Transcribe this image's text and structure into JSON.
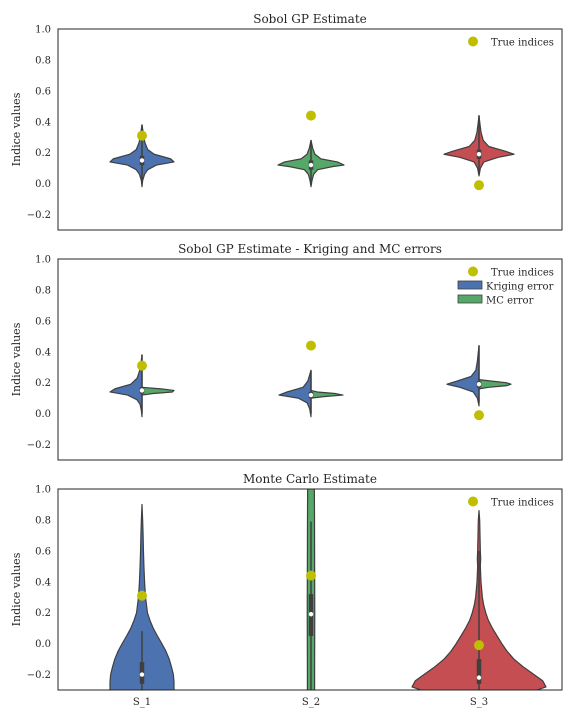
{
  "chart_data": [
    {
      "type": "violin",
      "title": "Sobol GP Estimate",
      "ylabel": "Indice values",
      "xlabel": "",
      "ylim": [
        -0.3,
        1.0
      ],
      "yticks": [
        "−0.2",
        "0.0",
        "0.2",
        "0.4",
        "0.6",
        "0.8",
        "1.0"
      ],
      "categories": [
        "S_1",
        "S_2",
        "S_3"
      ],
      "show_xticks": false,
      "legend": {
        "position": "top-right",
        "entries": [
          {
            "label": "True indices",
            "kind": "marker",
            "color": "#bfbf00"
          }
        ]
      },
      "violins": [
        {
          "category": "S_1",
          "color": "#4c72b0",
          "median": 0.15,
          "q1": 0.12,
          "q3": 0.18,
          "whisker_low": 0.0,
          "whisker_high": 0.38,
          "profile": [
            [
              -0.02,
              0.0
            ],
            [
              0.02,
              0.02
            ],
            [
              0.06,
              0.08
            ],
            [
              0.09,
              0.18
            ],
            [
              0.12,
              0.45
            ],
            [
              0.14,
              1.0
            ],
            [
              0.16,
              0.9
            ],
            [
              0.19,
              0.38
            ],
            [
              0.22,
              0.18
            ],
            [
              0.26,
              0.1
            ],
            [
              0.3,
              0.05
            ],
            [
              0.34,
              0.03
            ],
            [
              0.38,
              0.0
            ]
          ]
        },
        {
          "category": "S_2",
          "color": "#55a868",
          "median": 0.12,
          "q1": 0.09,
          "q3": 0.15,
          "whisker_low": 0.0,
          "whisker_high": 0.28,
          "profile": [
            [
              -0.02,
              0.0
            ],
            [
              0.02,
              0.03
            ],
            [
              0.06,
              0.08
            ],
            [
              0.09,
              0.2
            ],
            [
              0.11,
              0.65
            ],
            [
              0.12,
              1.0
            ],
            [
              0.14,
              0.8
            ],
            [
              0.16,
              0.3
            ],
            [
              0.19,
              0.12
            ],
            [
              0.23,
              0.05
            ],
            [
              0.28,
              0.0
            ]
          ]
        },
        {
          "category": "S_3",
          "color": "#c44e52",
          "median": 0.19,
          "q1": 0.16,
          "q3": 0.22,
          "whisker_low": 0.06,
          "whisker_high": 0.44,
          "profile": [
            [
              0.05,
              0.0
            ],
            [
              0.1,
              0.04
            ],
            [
              0.14,
              0.14
            ],
            [
              0.17,
              0.55
            ],
            [
              0.19,
              1.0
            ],
            [
              0.21,
              0.75
            ],
            [
              0.24,
              0.28
            ],
            [
              0.28,
              0.12
            ],
            [
              0.33,
              0.06
            ],
            [
              0.38,
              0.03
            ],
            [
              0.44,
              0.0
            ]
          ]
        }
      ],
      "true_indices": [
        0.31,
        0.44,
        -0.01
      ]
    },
    {
      "type": "split-violin",
      "title": "Sobol GP Estimate - Kriging and MC errors",
      "ylabel": "Indice values",
      "xlabel": "",
      "ylim": [
        -0.3,
        1.0
      ],
      "yticks": [
        "−0.2",
        "0.0",
        "0.2",
        "0.4",
        "0.6",
        "0.8",
        "1.0"
      ],
      "categories": [
        "S_1",
        "S_2",
        "S_3"
      ],
      "show_xticks": false,
      "legend": {
        "position": "top-right",
        "entries": [
          {
            "label": "True indices",
            "kind": "marker",
            "color": "#bfbf00"
          },
          {
            "label": "Kriging error",
            "kind": "patch",
            "color": "#4c72b0"
          },
          {
            "label": "MC error",
            "kind": "patch",
            "color": "#55a868"
          }
        ]
      },
      "violins": [
        {
          "category": "S_1",
          "median": 0.15,
          "q1": 0.13,
          "q3": 0.17,
          "whisker_low": 0.0,
          "whisker_high": 0.38,
          "left": {
            "series": "Kriging error",
            "color": "#4c72b0",
            "profile": [
              [
                -0.02,
                0.0
              ],
              [
                0.02,
                0.02
              ],
              [
                0.06,
                0.06
              ],
              [
                0.09,
                0.16
              ],
              [
                0.12,
                0.45
              ],
              [
                0.14,
                1.0
              ],
              [
                0.16,
                0.85
              ],
              [
                0.19,
                0.35
              ],
              [
                0.23,
                0.15
              ],
              [
                0.28,
                0.07
              ],
              [
                0.33,
                0.03
              ],
              [
                0.38,
                0.0
              ]
            ]
          },
          "right": {
            "series": "MC error",
            "color": "#55a868",
            "profile": [
              [
                0.12,
                0.0
              ],
              [
                0.13,
                0.35
              ],
              [
                0.14,
                0.95
              ],
              [
                0.15,
                1.0
              ],
              [
                0.16,
                0.6
              ],
              [
                0.17,
                0.0
              ]
            ]
          }
        },
        {
          "category": "S_2",
          "median": 0.12,
          "q1": 0.1,
          "q3": 0.14,
          "whisker_low": 0.0,
          "whisker_high": 0.28,
          "left": {
            "series": "Kriging error",
            "color": "#4c72b0",
            "profile": [
              [
                -0.02,
                0.0
              ],
              [
                0.03,
                0.04
              ],
              [
                0.07,
                0.12
              ],
              [
                0.1,
                0.4
              ],
              [
                0.12,
                1.0
              ],
              [
                0.14,
                0.75
              ],
              [
                0.17,
                0.25
              ],
              [
                0.21,
                0.1
              ],
              [
                0.28,
                0.0
              ]
            ]
          },
          "right": {
            "series": "MC error",
            "color": "#55a868",
            "profile": [
              [
                0.1,
                0.0
              ],
              [
                0.11,
                0.4
              ],
              [
                0.12,
                1.0
              ],
              [
                0.13,
                0.75
              ],
              [
                0.14,
                0.2
              ],
              [
                0.15,
                0.0
              ]
            ]
          }
        },
        {
          "category": "S_3",
          "median": 0.19,
          "q1": 0.17,
          "q3": 0.21,
          "whisker_low": 0.07,
          "whisker_high": 0.44,
          "left": {
            "series": "Kriging error",
            "color": "#4c72b0",
            "profile": [
              [
                0.05,
                0.0
              ],
              [
                0.1,
                0.05
              ],
              [
                0.14,
                0.18
              ],
              [
                0.17,
                0.6
              ],
              [
                0.19,
                1.0
              ],
              [
                0.21,
                0.7
              ],
              [
                0.24,
                0.25
              ],
              [
                0.28,
                0.1
              ],
              [
                0.34,
                0.05
              ],
              [
                0.44,
                0.0
              ]
            ]
          },
          "right": {
            "series": "MC error",
            "color": "#55a868",
            "profile": [
              [
                0.16,
                0.0
              ],
              [
                0.17,
                0.3
              ],
              [
                0.18,
                0.85
              ],
              [
                0.19,
                1.0
              ],
              [
                0.2,
                0.85
              ],
              [
                0.21,
                0.4
              ],
              [
                0.22,
                0.0
              ]
            ]
          }
        }
      ],
      "true_indices": [
        0.31,
        0.44,
        -0.01
      ]
    },
    {
      "type": "violin",
      "title": "Monte Carlo Estimate",
      "ylabel": "Indice values",
      "xlabel": "",
      "ylim": [
        -0.3,
        1.0
      ],
      "yticks": [
        "−0.2",
        "0.0",
        "0.2",
        "0.4",
        "0.6",
        "0.8",
        "1.0"
      ],
      "categories": [
        "S_1",
        "S_2",
        "S_3"
      ],
      "show_xticks": true,
      "legend": {
        "position": "top-right",
        "entries": [
          {
            "label": "True indices",
            "kind": "marker",
            "color": "#bfbf00"
          }
        ]
      },
      "violins": [
        {
          "category": "S_1",
          "color": "#4c72b0",
          "median": -0.2,
          "q1": -0.26,
          "q3": -0.12,
          "whisker_low": -0.3,
          "whisker_high": 0.08,
          "profile": [
            [
              -0.31,
              1.0
            ],
            [
              -0.25,
              1.0
            ],
            [
              -0.2,
              0.98
            ],
            [
              -0.15,
              0.92
            ],
            [
              -0.1,
              0.85
            ],
            [
              -0.05,
              0.75
            ],
            [
              0.0,
              0.62
            ],
            [
              0.05,
              0.48
            ],
            [
              0.1,
              0.35
            ],
            [
              0.15,
              0.25
            ],
            [
              0.2,
              0.17
            ],
            [
              0.3,
              0.11
            ],
            [
              0.4,
              0.08
            ],
            [
              0.5,
              0.06
            ],
            [
              0.6,
              0.045
            ],
            [
              0.7,
              0.035
            ],
            [
              0.8,
              0.02
            ],
            [
              0.9,
              0.0
            ]
          ]
        },
        {
          "category": "S_2",
          "color": "#55a868",
          "median": 0.19,
          "q1": 0.05,
          "q3": 0.32,
          "whisker_low": -0.3,
          "whisker_high": 0.79,
          "profile": [
            [
              -0.31,
              0.45
            ],
            [
              -0.2,
              0.45
            ],
            [
              0.0,
              0.46
            ],
            [
              0.2,
              0.47
            ],
            [
              0.4,
              0.46
            ],
            [
              0.6,
              0.45
            ],
            [
              0.8,
              0.44
            ],
            [
              1.0,
              0.42
            ],
            [
              1.05,
              0.4
            ]
          ]
        },
        {
          "category": "S_3",
          "color": "#c44e52",
          "median": -0.22,
          "q1": -0.26,
          "q3": -0.1,
          "whisker_low": -0.3,
          "whisker_high": 0.6,
          "profile": [
            [
              -0.31,
              0.8
            ],
            [
              -0.28,
              1.0
            ],
            [
              -0.24,
              0.95
            ],
            [
              -0.2,
              0.82
            ],
            [
              -0.15,
              0.66
            ],
            [
              -0.1,
              0.52
            ],
            [
              -0.05,
              0.42
            ],
            [
              0.0,
              0.34
            ],
            [
              0.05,
              0.27
            ],
            [
              0.1,
              0.2
            ],
            [
              0.15,
              0.14
            ],
            [
              0.2,
              0.1
            ],
            [
              0.25,
              0.07
            ],
            [
              0.3,
              0.05
            ],
            [
              0.4,
              0.03
            ],
            [
              0.5,
              0.02
            ],
            [
              0.55,
              0.025
            ],
            [
              0.6,
              0.02
            ],
            [
              0.7,
              0.015
            ],
            [
              0.8,
              0.01
            ],
            [
              0.86,
              0.0
            ]
          ]
        }
      ],
      "true_indices": [
        0.31,
        0.44,
        -0.01
      ]
    }
  ]
}
